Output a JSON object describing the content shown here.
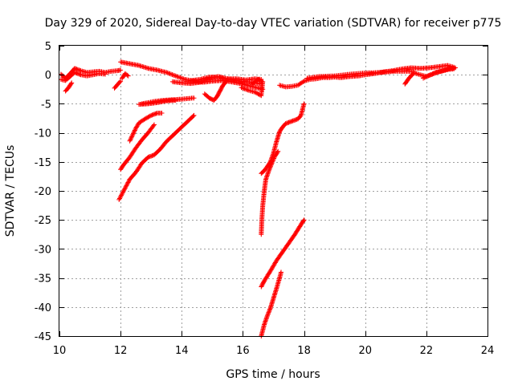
{
  "chart_data": {
    "type": "scatter",
    "title": "Day 329 of 2020, Sidereal Day-to-day VTEC variation (SDTVAR) for receiver p775",
    "xlabel": "GPS time / hours",
    "ylabel": "SDTVAR / TECUs",
    "xlim": [
      10,
      24
    ],
    "ylim": [
      -45,
      5
    ],
    "xticks": [
      10,
      12,
      14,
      16,
      18,
      20,
      22,
      24
    ],
    "yticks": [
      5,
      0,
      -5,
      -10,
      -15,
      -20,
      -25,
      -30,
      -35,
      -40,
      -45
    ],
    "grid": true,
    "marker": "plus",
    "color": "#ff0000",
    "series": [
      {
        "values": [
          [
            10.05,
            0.1
          ],
          [
            10.2,
            -0.6
          ],
          [
            10.35,
            0.2
          ],
          [
            10.5,
            1.1
          ],
          [
            10.7,
            0.7
          ],
          [
            10.9,
            0.4
          ],
          [
            11.1,
            0.5
          ],
          [
            11.3,
            0.6
          ],
          [
            11.5,
            0.4
          ],
          [
            11.7,
            0.6
          ],
          [
            11.9,
            0.7
          ],
          [
            12.0,
            0.8
          ]
        ]
      },
      {
        "values": [
          [
            10.05,
            -0.8
          ],
          [
            10.2,
            -1.0
          ],
          [
            10.35,
            -0.3
          ],
          [
            10.5,
            0.4
          ],
          [
            10.7,
            0.0
          ],
          [
            10.9,
            -0.2
          ],
          [
            11.1,
            0.0
          ],
          [
            11.3,
            0.2
          ],
          [
            11.5,
            0.1
          ]
        ]
      },
      {
        "values": [
          [
            10.2,
            -2.8
          ],
          [
            10.3,
            -2.2
          ],
          [
            10.4,
            -1.4
          ]
        ]
      },
      {
        "values": [
          [
            11.8,
            -2.3
          ],
          [
            11.9,
            -1.7
          ],
          [
            12.0,
            -1.1
          ]
        ]
      },
      {
        "values": [
          [
            12.05,
            -0.6
          ],
          [
            12.15,
            0.2
          ],
          [
            12.25,
            -0.2
          ]
        ]
      },
      {
        "values": [
          [
            12.0,
            2.2
          ],
          [
            12.3,
            1.9
          ],
          [
            12.6,
            1.6
          ],
          [
            12.9,
            1.1
          ],
          [
            13.2,
            0.8
          ],
          [
            13.5,
            0.4
          ],
          [
            13.8,
            -0.2
          ],
          [
            14.1,
            -0.8
          ],
          [
            14.4,
            -1.1
          ],
          [
            14.7,
            -1.3
          ],
          [
            15.0,
            -1.1
          ],
          [
            15.3,
            -1.0
          ],
          [
            15.6,
            -1.2
          ],
          [
            15.9,
            -1.5
          ],
          [
            16.2,
            -1.9
          ],
          [
            16.5,
            -2.3
          ],
          [
            16.65,
            -2.5
          ]
        ]
      },
      {
        "values": [
          [
            13.7,
            -1.2
          ],
          [
            14.0,
            -1.4
          ],
          [
            14.3,
            -1.5
          ],
          [
            14.6,
            -1.3
          ],
          [
            14.9,
            -0.6
          ],
          [
            15.2,
            -0.3
          ],
          [
            15.5,
            -0.7
          ],
          [
            15.8,
            -1.0
          ],
          [
            16.1,
            -1.2
          ],
          [
            16.4,
            -1.4
          ],
          [
            16.6,
            -1.6
          ]
        ]
      },
      {
        "values": [
          [
            14.3,
            -1.0
          ],
          [
            14.6,
            -0.8
          ],
          [
            14.9,
            -0.4
          ],
          [
            15.2,
            -0.4
          ],
          [
            15.5,
            -0.7
          ],
          [
            15.8,
            -0.7
          ],
          [
            16.1,
            -0.9
          ],
          [
            16.4,
            -0.7
          ],
          [
            16.6,
            -0.8
          ]
        ]
      },
      {
        "values": [
          [
            15.95,
            -2.2
          ],
          [
            16.2,
            -2.7
          ],
          [
            16.4,
            -3.0
          ],
          [
            16.6,
            -3.6
          ],
          [
            16.65,
            -1.2
          ],
          [
            16.5,
            -0.8
          ],
          [
            16.3,
            -1.6
          ]
        ]
      },
      {
        "values": [
          [
            14.75,
            -3.3
          ],
          [
            14.9,
            -4.0
          ],
          [
            15.05,
            -4.4
          ],
          [
            15.15,
            -3.8
          ],
          [
            15.25,
            -2.8
          ],
          [
            15.35,
            -1.8
          ],
          [
            15.45,
            -1.2
          ]
        ]
      },
      {
        "values": [
          [
            12.7,
            -5.0
          ],
          [
            12.9,
            -4.8
          ],
          [
            13.1,
            -4.6
          ],
          [
            13.4,
            -4.4
          ],
          [
            13.7,
            -4.3
          ],
          [
            14.0,
            -4.2
          ],
          [
            14.2,
            -4.1
          ],
          [
            14.4,
            -4.0
          ]
        ]
      },
      {
        "values": [
          [
            12.6,
            -5.1
          ],
          [
            12.9,
            -5.0
          ],
          [
            13.2,
            -4.8
          ],
          [
            13.5,
            -4.5
          ],
          [
            13.8,
            -4.4
          ]
        ]
      },
      {
        "values": [
          [
            11.95,
            -21.5
          ],
          [
            12.1,
            -20.0
          ],
          [
            12.3,
            -18.0
          ],
          [
            12.5,
            -16.8
          ],
          [
            12.7,
            -15.2
          ],
          [
            12.9,
            -14.2
          ],
          [
            13.1,
            -13.8
          ],
          [
            13.3,
            -12.8
          ],
          [
            13.5,
            -11.5
          ],
          [
            13.7,
            -10.5
          ],
          [
            13.9,
            -9.5
          ],
          [
            14.1,
            -8.5
          ],
          [
            14.3,
            -7.5
          ],
          [
            14.4,
            -7.0
          ]
        ]
      },
      {
        "values": [
          [
            12.0,
            -16.3
          ],
          [
            12.1,
            -15.5
          ],
          [
            12.3,
            -14.2
          ],
          [
            12.5,
            -12.6
          ],
          [
            12.7,
            -11.2
          ],
          [
            12.9,
            -10.0
          ],
          [
            13.0,
            -9.3
          ],
          [
            13.1,
            -8.6
          ]
        ]
      },
      {
        "values": [
          [
            12.3,
            -11.4
          ],
          [
            12.4,
            -10.3
          ],
          [
            12.5,
            -9.2
          ],
          [
            12.6,
            -8.3
          ],
          [
            12.8,
            -7.6
          ],
          [
            13.0,
            -7.0
          ],
          [
            13.2,
            -6.6
          ],
          [
            13.35,
            -6.6
          ]
        ]
      },
      {
        "values": [
          [
            16.6,
            -27.5
          ],
          [
            16.62,
            -25.0
          ],
          [
            16.65,
            -22.5
          ],
          [
            16.7,
            -20.0
          ],
          [
            16.75,
            -18.0
          ],
          [
            16.85,
            -16.5
          ],
          [
            16.95,
            -15.2
          ],
          [
            17.05,
            -14.0
          ],
          [
            17.15,
            -13.2
          ]
        ]
      },
      {
        "values": [
          [
            16.6,
            -17.0
          ],
          [
            16.7,
            -16.5
          ],
          [
            16.8,
            -15.8
          ],
          [
            16.9,
            -15.0
          ],
          [
            17.0,
            -13.5
          ],
          [
            17.1,
            -11.5
          ],
          [
            17.2,
            -9.8
          ],
          [
            17.3,
            -9.0
          ],
          [
            17.4,
            -8.4
          ],
          [
            17.6,
            -8.0
          ],
          [
            17.8,
            -7.6
          ],
          [
            17.9,
            -7.0
          ],
          [
            18.0,
            -5.0
          ]
        ]
      },
      {
        "values": [
          [
            16.6,
            -36.5
          ],
          [
            16.7,
            -35.5
          ],
          [
            16.9,
            -33.8
          ],
          [
            17.1,
            -32.0
          ],
          [
            17.3,
            -30.5
          ],
          [
            17.5,
            -29.0
          ],
          [
            17.7,
            -27.5
          ],
          [
            17.9,
            -25.8
          ],
          [
            18.0,
            -25.0
          ]
        ]
      },
      {
        "values": [
          [
            16.6,
            -45.0
          ],
          [
            16.7,
            -43.0
          ],
          [
            16.8,
            -41.5
          ],
          [
            16.9,
            -40.2
          ],
          [
            17.0,
            -38.5
          ],
          [
            17.1,
            -36.8
          ],
          [
            17.2,
            -35.0
          ],
          [
            17.25,
            -34.0
          ]
        ]
      },
      {
        "values": [
          [
            17.2,
            -1.8
          ],
          [
            17.4,
            -2.1
          ],
          [
            17.6,
            -2.0
          ],
          [
            17.8,
            -1.8
          ],
          [
            18.0,
            -1.1
          ],
          [
            18.2,
            -0.8
          ],
          [
            18.4,
            -0.7
          ],
          [
            18.6,
            -0.5
          ],
          [
            18.8,
            -0.5
          ],
          [
            19.0,
            -0.4
          ],
          [
            19.2,
            -0.5
          ],
          [
            19.5,
            -0.3
          ],
          [
            19.8,
            -0.2
          ],
          [
            20.0,
            0.0
          ],
          [
            20.3,
            0.2
          ],
          [
            20.6,
            0.5
          ],
          [
            20.9,
            0.7
          ],
          [
            21.2,
            1.0
          ],
          [
            21.5,
            1.2
          ],
          [
            21.8,
            1.1
          ],
          [
            22.1,
            1.2
          ],
          [
            22.4,
            1.4
          ],
          [
            22.7,
            1.6
          ],
          [
            22.9,
            1.3
          ]
        ]
      },
      {
        "values": [
          [
            18.1,
            -0.6
          ],
          [
            18.5,
            -0.3
          ],
          [
            19.0,
            -0.2
          ],
          [
            19.5,
            0.1
          ],
          [
            20.0,
            0.3
          ],
          [
            20.5,
            0.4
          ],
          [
            21.0,
            0.6
          ],
          [
            21.4,
            0.6
          ],
          [
            21.6,
            0.5
          ]
        ]
      },
      {
        "values": [
          [
            21.3,
            -1.6
          ],
          [
            21.4,
            -0.8
          ],
          [
            21.5,
            -0.2
          ],
          [
            21.6,
            0.3
          ],
          [
            21.8,
            0.0
          ],
          [
            22.0,
            -0.3
          ],
          [
            22.2,
            0.1
          ],
          [
            22.4,
            0.5
          ],
          [
            22.6,
            0.8
          ],
          [
            22.8,
            1.1
          ],
          [
            22.95,
            1.2
          ]
        ]
      },
      {
        "values": [
          [
            21.9,
            -0.6
          ],
          [
            22.0,
            -0.3
          ],
          [
            22.1,
            -0.1
          ],
          [
            22.3,
            0.4
          ],
          [
            22.5,
            0.6
          ],
          [
            22.7,
            0.9
          ],
          [
            22.9,
            1.0
          ]
        ]
      }
    ]
  }
}
